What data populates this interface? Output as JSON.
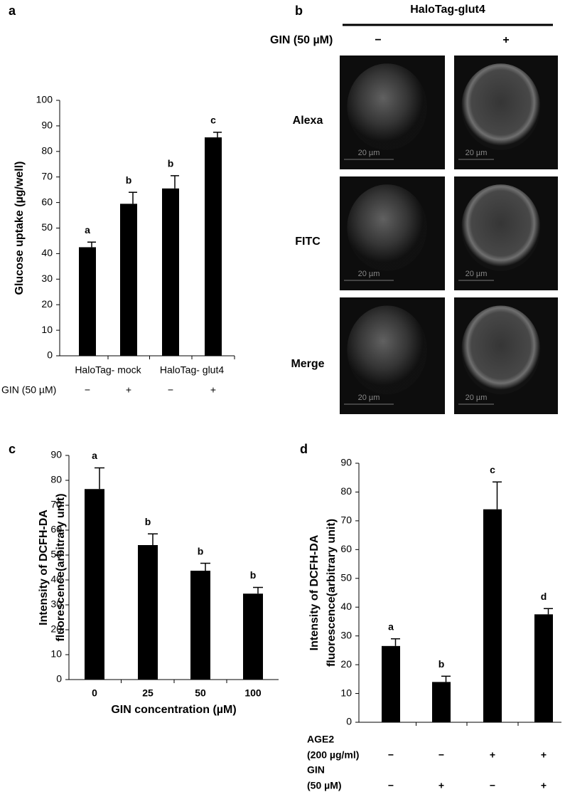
{
  "chart_data": [
    {
      "type": "bar",
      "panel": "a",
      "ylabel": [
        "Glucose uptake (µg/well)"
      ],
      "categories": [
        "−",
        "+",
        "−",
        "+"
      ],
      "category_row_label": "GIN (50 µM)",
      "groups": [
        "HaloTag- mock",
        "HaloTag- glut4"
      ],
      "values": [
        42.5,
        59.5,
        65.5,
        85.5
      ],
      "errors": [
        2,
        4.5,
        5,
        2
      ],
      "annotations": [
        "a",
        "b",
        "b",
        "c"
      ],
      "color": "#000000",
      "ylim": [
        0,
        100
      ],
      "yticks": [
        0,
        10,
        20,
        30,
        40,
        50,
        60,
        70,
        80,
        90,
        100
      ]
    },
    {
      "type": "bar",
      "panel": "c",
      "ylabel": [
        "Intensity of DCFH-DA",
        "fluorescence(arbitrary unit)"
      ],
      "xlabel": "GIN concentration (µM)",
      "categories": [
        "0",
        "25",
        "50",
        "100"
      ],
      "values": [
        76.5,
        54,
        43.7,
        34.5
      ],
      "errors": [
        8.5,
        4.5,
        3,
        2.5
      ],
      "annotations": [
        "a",
        "b",
        "b",
        "b"
      ],
      "color": "#000000",
      "ylim": [
        0,
        90
      ],
      "yticks": [
        0,
        10,
        20,
        30,
        40,
        50,
        60,
        70,
        80,
        90
      ]
    },
    {
      "type": "bar",
      "panel": "d",
      "ylabel": [
        "Intensity of DCFH-DA",
        "fluorescence(arbitrary unit)"
      ],
      "rows": [
        {
          "label": [
            "AGE2",
            "(200 µg/ml)"
          ],
          "signs": [
            "−",
            "−",
            "+",
            "+"
          ]
        },
        {
          "label": [
            "GIN",
            "(50 µM)"
          ],
          "signs": [
            "−",
            "+",
            "−",
            "+"
          ]
        }
      ],
      "values": [
        26.5,
        14,
        74,
        37.5
      ],
      "errors": [
        2.5,
        2,
        9.5,
        2
      ],
      "annotations": [
        "a",
        "b",
        "c",
        "d"
      ],
      "color": "#000000",
      "ylim": [
        0,
        90
      ],
      "yticks": [
        0,
        10,
        20,
        30,
        40,
        50,
        60,
        70,
        80,
        90
      ]
    }
  ],
  "panel_b": {
    "panel": "b",
    "header": "HaloTag-glut4",
    "treatment": "GIN (50 µM)",
    "columns": [
      "−",
      "+"
    ],
    "rows": [
      "Alexa",
      "FITC",
      "Merge"
    ],
    "scale_labels": [
      "20 µm",
      "20 µm",
      "20 µm",
      "20 µm",
      "20 µm",
      "20 µm"
    ]
  }
}
